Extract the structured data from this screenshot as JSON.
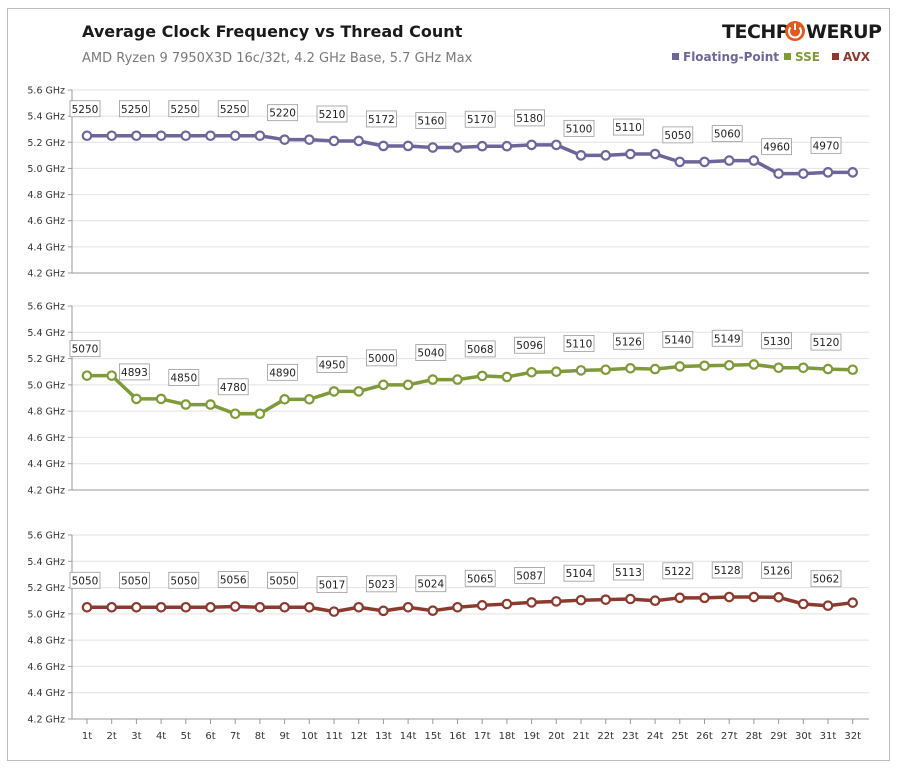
{
  "header": {
    "title": "Average Clock Frequency vs Thread Count",
    "subtitle": "AMD Ryzen 9 7950X3D 16c/32t, 4.2 GHz Base, 5.7 GHz Max",
    "logo_left": "TECHP",
    "logo_right": "WERUP"
  },
  "legend": [
    {
      "label": "Floating-Point",
      "color": "#6e6699"
    },
    {
      "label": "SSE",
      "color": "#7f9a3b"
    },
    {
      "label": "AVX",
      "color": "#8a3b30"
    }
  ],
  "chart_data": [
    {
      "type": "line",
      "series_name": "Floating-Point",
      "color": "#6e6699",
      "ylim": [
        4.2,
        5.6
      ],
      "y_ticks": [
        "5.6 GHz",
        "5.4 GHz",
        "5.2 GHz",
        "5.0 GHz",
        "4.8 GHz",
        "4.6 GHz",
        "4.4 GHz",
        "4.2 GHz"
      ],
      "x": [
        "1t",
        "2t",
        "3t",
        "4t",
        "5t",
        "6t",
        "7t",
        "8t",
        "9t",
        "10t",
        "11t",
        "12t",
        "13t",
        "14t",
        "15t",
        "16t",
        "17t",
        "18t",
        "19t",
        "20t",
        "21t",
        "22t",
        "23t",
        "24t",
        "25t",
        "26t",
        "27t",
        "28t",
        "29t",
        "30t",
        "31t",
        "32t"
      ],
      "values": [
        5250,
        5250,
        5250,
        5250,
        5250,
        5250,
        5250,
        5250,
        5220,
        5220,
        5210,
        5210,
        5172,
        5172,
        5160,
        5160,
        5170,
        5170,
        5180,
        5180,
        5100,
        5100,
        5110,
        5110,
        5050,
        5050,
        5060,
        5060,
        4960,
        4960,
        4970,
        4970
      ],
      "labels": [
        "5250",
        "",
        "5250",
        "",
        "5250",
        "",
        "5250",
        "",
        "5220",
        "",
        "5210",
        "",
        "5172",
        "",
        "5160",
        "",
        "5170",
        "",
        "5180",
        "",
        "5100",
        "",
        "5110",
        "",
        "5050",
        "",
        "5060",
        "",
        "4960",
        "",
        "4970",
        ""
      ]
    },
    {
      "type": "line",
      "series_name": "SSE",
      "color": "#7f9a3b",
      "ylim": [
        4.2,
        5.6
      ],
      "y_ticks": [
        "5.6 GHz",
        "5.4 GHz",
        "5.2 GHz",
        "5.0 GHz",
        "4.8 GHz",
        "4.6 GHz",
        "4.4 GHz",
        "4.2 GHz"
      ],
      "x": [
        "1t",
        "2t",
        "3t",
        "4t",
        "5t",
        "6t",
        "7t",
        "8t",
        "9t",
        "10t",
        "11t",
        "12t",
        "13t",
        "14t",
        "15t",
        "16t",
        "17t",
        "18t",
        "19t",
        "20t",
        "21t",
        "22t",
        "23t",
        "24t",
        "25t",
        "26t",
        "27t",
        "28t",
        "29t",
        "30t",
        "31t",
        "32t"
      ],
      "values": [
        5070,
        5070,
        4893,
        4893,
        4850,
        4850,
        4780,
        4780,
        4890,
        4890,
        4950,
        4950,
        5000,
        5000,
        5040,
        5040,
        5068,
        5060,
        5096,
        5100,
        5110,
        5115,
        5126,
        5120,
        5140,
        5145,
        5149,
        5155,
        5130,
        5130,
        5120,
        5115
      ],
      "labels": [
        "5070",
        "",
        "4893",
        "",
        "4850",
        "",
        "4780",
        "",
        "4890",
        "",
        "4950",
        "",
        "5000",
        "",
        "5040",
        "",
        "5068",
        "",
        "5096",
        "",
        "5110",
        "",
        "5126",
        "",
        "5140",
        "",
        "5149",
        "",
        "5130",
        "",
        "5120",
        ""
      ]
    },
    {
      "type": "line",
      "series_name": "AVX",
      "color": "#8a3b30",
      "ylim": [
        4.2,
        5.6
      ],
      "y_ticks": [
        "5.6 GHz",
        "5.4 GHz",
        "5.2 GHz",
        "5.0 GHz",
        "4.8 GHz",
        "4.6 GHz",
        "4.4 GHz",
        "4.2 GHz"
      ],
      "x": [
        "1t",
        "2t",
        "3t",
        "4t",
        "5t",
        "6t",
        "7t",
        "8t",
        "9t",
        "10t",
        "11t",
        "12t",
        "13t",
        "14t",
        "15t",
        "16t",
        "17t",
        "18t",
        "19t",
        "20t",
        "21t",
        "22t",
        "23t",
        "24t",
        "25t",
        "26t",
        "27t",
        "28t",
        "29t",
        "30t",
        "31t",
        "32t"
      ],
      "values": [
        5050,
        5050,
        5050,
        5050,
        5050,
        5050,
        5056,
        5050,
        5050,
        5050,
        5017,
        5050,
        5023,
        5050,
        5024,
        5050,
        5065,
        5075,
        5087,
        5095,
        5104,
        5108,
        5113,
        5100,
        5122,
        5122,
        5128,
        5128,
        5126,
        5075,
        5062,
        5085
      ],
      "labels": [
        "5050",
        "",
        "5050",
        "",
        "5050",
        "",
        "5056",
        "",
        "5050",
        "",
        "5017",
        "",
        "5023",
        "",
        "5024",
        "",
        "5065",
        "",
        "5087",
        "",
        "5104",
        "",
        "5113",
        "",
        "5122",
        "",
        "5128",
        "",
        "5126",
        "",
        "5062",
        ""
      ]
    }
  ]
}
